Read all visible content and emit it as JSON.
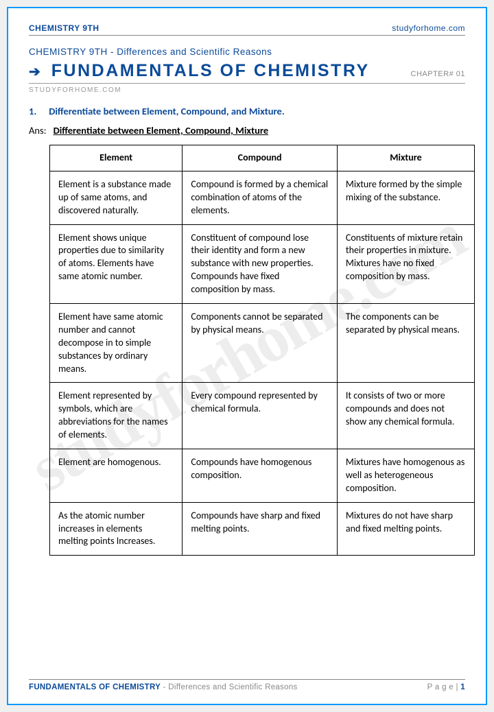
{
  "header": {
    "left": "CHEMISTRY 9TH",
    "right": "studyforhome.com"
  },
  "breadcrumb": "CHEMISTRY 9TH - Differences and Scientific Reasons",
  "title": "FUNDAMENTALS OF CHEMISTRY",
  "chapter": "CHAPTER# 01",
  "site_label": "STUDYFORHOME.COM",
  "watermark": "studyforhome.com",
  "question": {
    "number": "1.",
    "text": "Differentiate between Element, Compound, and Mixture."
  },
  "answer": {
    "label": "Ans:",
    "title": "Differentiate between Element, Compound, Mixture"
  },
  "table": {
    "columns": [
      "Element",
      "Compound",
      "Mixture"
    ],
    "rows": [
      [
        "Element is a substance made up of same atoms, and discovered naturally.",
        "Compound is formed by a chemical combination of atoms of the elements.",
        "Mixture formed by the simple mixing of the substance."
      ],
      [
        "Element shows unique properties due to similarity of atoms. Elements have same atomic number.",
        "Constituent of compound lose their identity and form a new substance with new properties. Compounds have fixed composition by mass.",
        "Constituents of mixture retain their properties in mixture. Mixtures have no fixed composition by mass."
      ],
      [
        "Element have same atomic number and cannot decompose in to simple substances by ordinary means.",
        "Components cannot be separated by physical means.",
        "The components can be separated by physical means."
      ],
      [
        "Element represented by symbols, which are abbreviations for the names of elements.",
        "Every compound represented by chemical formula.",
        "It consists of two or more compounds and does not show any chemical formula."
      ],
      [
        "Element are homogenous.",
        "Compounds have homogenous composition.",
        "Mixtures have homogenous as well as heterogeneous composition."
      ],
      [
        "As the atomic number increases in elements melting points Increases.",
        "Compounds have sharp and fixed melting points.",
        "Mixtures do not have sharp and fixed melting points."
      ]
    ]
  },
  "footer": {
    "main": "FUNDAMENTALS OF CHEMISTRY",
    "sub": " - Differences and Scientific Reasons",
    "page_label": "P a g e  | ",
    "page_num": "1"
  },
  "colors": {
    "primary": "#0b4a99",
    "border": "#0099ff",
    "muted": "#888888"
  }
}
